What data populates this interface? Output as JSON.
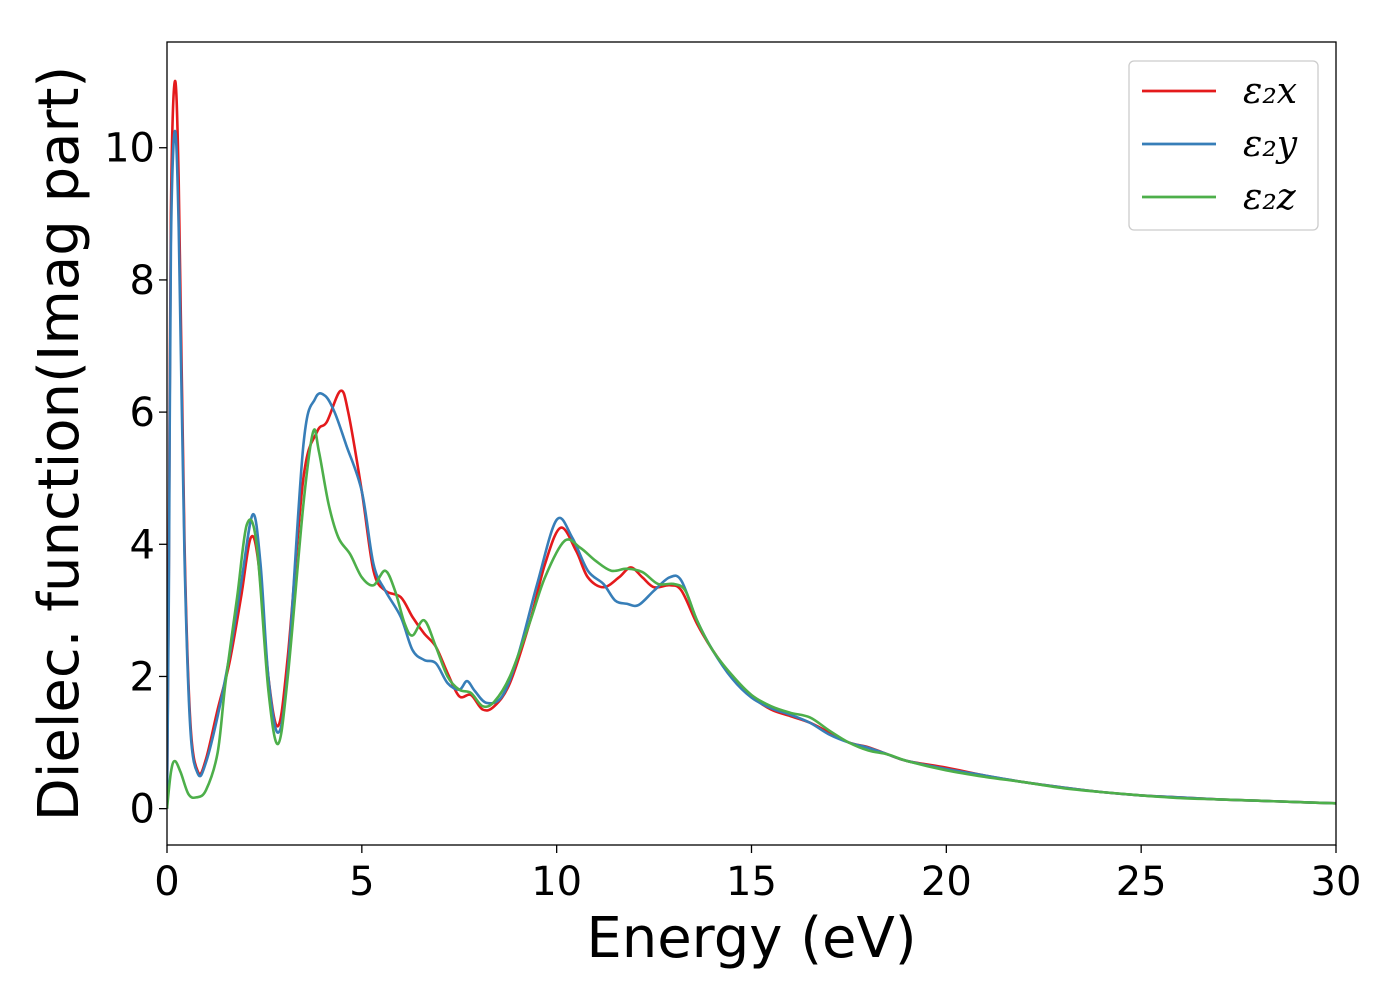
{
  "chart_data": {
    "type": "line",
    "xlabel": "Energy (eV)",
    "ylabel": "Dielec. function(Imag part)",
    "xlim": [
      0,
      30
    ],
    "ylim": [
      -0.55,
      11.6
    ],
    "xticks": [
      0,
      5,
      10,
      15,
      20,
      25,
      30
    ],
    "xtick_labels": [
      "0",
      "5",
      "10",
      "15",
      "20",
      "25",
      "30"
    ],
    "yticks": [
      0,
      2,
      4,
      6,
      8,
      10
    ],
    "ytick_labels": [
      "0",
      "2",
      "4",
      "6",
      "8",
      "10"
    ],
    "grid": false,
    "legend_position": "top-right",
    "series": [
      {
        "name": "ε₂x",
        "color": "#e41a1c",
        "points": [
          [
            0,
            0
          ],
          [
            0.05,
            4
          ],
          [
            0.1,
            9
          ],
          [
            0.2,
            11.0
          ],
          [
            0.3,
            9.5
          ],
          [
            0.45,
            4
          ],
          [
            0.6,
            1.3
          ],
          [
            0.8,
            0.55
          ],
          [
            1.0,
            0.75
          ],
          [
            1.3,
            1.5
          ],
          [
            1.6,
            2.2
          ],
          [
            1.9,
            3.2
          ],
          [
            2.15,
            4.1
          ],
          [
            2.35,
            3.7
          ],
          [
            2.6,
            2.0
          ],
          [
            2.85,
            1.25
          ],
          [
            3.1,
            2.3
          ],
          [
            3.5,
            5.0
          ],
          [
            3.85,
            5.7
          ],
          [
            4.1,
            5.85
          ],
          [
            4.45,
            6.32
          ],
          [
            4.65,
            6.0
          ],
          [
            5.0,
            4.8
          ],
          [
            5.3,
            3.6
          ],
          [
            5.6,
            3.3
          ],
          [
            6.0,
            3.2
          ],
          [
            6.3,
            2.9
          ],
          [
            6.6,
            2.65
          ],
          [
            6.9,
            2.45
          ],
          [
            7.2,
            2.05
          ],
          [
            7.5,
            1.7
          ],
          [
            7.8,
            1.72
          ],
          [
            8.1,
            1.5
          ],
          [
            8.4,
            1.55
          ],
          [
            8.8,
            1.9
          ],
          [
            9.3,
            2.8
          ],
          [
            9.7,
            3.7
          ],
          [
            10.1,
            4.25
          ],
          [
            10.5,
            3.9
          ],
          [
            10.8,
            3.5
          ],
          [
            11.2,
            3.35
          ],
          [
            11.6,
            3.5
          ],
          [
            11.9,
            3.65
          ],
          [
            12.2,
            3.5
          ],
          [
            12.5,
            3.35
          ],
          [
            12.9,
            3.38
          ],
          [
            13.2,
            3.3
          ],
          [
            13.6,
            2.8
          ],
          [
            14.0,
            2.4
          ],
          [
            14.5,
            2.0
          ],
          [
            15.0,
            1.7
          ],
          [
            15.5,
            1.5
          ],
          [
            16.0,
            1.4
          ],
          [
            16.5,
            1.3
          ],
          [
            17.0,
            1.15
          ],
          [
            17.5,
            1.0
          ],
          [
            18.0,
            0.93
          ],
          [
            18.5,
            0.82
          ],
          [
            19.0,
            0.72
          ],
          [
            20.0,
            0.62
          ],
          [
            21.0,
            0.5
          ],
          [
            22.0,
            0.4
          ],
          [
            23.0,
            0.32
          ],
          [
            24.0,
            0.25
          ],
          [
            25.0,
            0.2
          ],
          [
            26.0,
            0.17
          ],
          [
            27.0,
            0.14
          ],
          [
            28.0,
            0.12
          ],
          [
            29.0,
            0.1
          ],
          [
            30.0,
            0.08
          ]
        ]
      },
      {
        "name": "ε₂y",
        "color": "#377eb8",
        "points": [
          [
            0,
            0
          ],
          [
            0.05,
            3.5
          ],
          [
            0.1,
            8.5
          ],
          [
            0.2,
            10.25
          ],
          [
            0.3,
            8.8
          ],
          [
            0.45,
            3.8
          ],
          [
            0.6,
            1.2
          ],
          [
            0.8,
            0.52
          ],
          [
            1.0,
            0.7
          ],
          [
            1.3,
            1.4
          ],
          [
            1.6,
            2.3
          ],
          [
            1.9,
            3.4
          ],
          [
            2.2,
            4.45
          ],
          [
            2.4,
            3.7
          ],
          [
            2.6,
            2.0
          ],
          [
            2.85,
            1.15
          ],
          [
            3.1,
            2.1
          ],
          [
            3.5,
            5.5
          ],
          [
            3.8,
            6.2
          ],
          [
            4.05,
            6.25
          ],
          [
            4.3,
            6.0
          ],
          [
            4.6,
            5.5
          ],
          [
            5.0,
            4.8
          ],
          [
            5.3,
            3.7
          ],
          [
            5.6,
            3.3
          ],
          [
            6.0,
            2.9
          ],
          [
            6.3,
            2.4
          ],
          [
            6.6,
            2.25
          ],
          [
            6.9,
            2.2
          ],
          [
            7.2,
            1.9
          ],
          [
            7.5,
            1.8
          ],
          [
            7.7,
            1.93
          ],
          [
            7.9,
            1.78
          ],
          [
            8.2,
            1.6
          ],
          [
            8.6,
            1.7
          ],
          [
            9.0,
            2.3
          ],
          [
            9.5,
            3.4
          ],
          [
            10.0,
            4.37
          ],
          [
            10.4,
            4.1
          ],
          [
            10.8,
            3.6
          ],
          [
            11.2,
            3.4
          ],
          [
            11.5,
            3.15
          ],
          [
            11.8,
            3.1
          ],
          [
            12.1,
            3.08
          ],
          [
            12.5,
            3.3
          ],
          [
            12.9,
            3.5
          ],
          [
            13.2,
            3.45
          ],
          [
            13.6,
            2.85
          ],
          [
            14.0,
            2.4
          ],
          [
            14.5,
            1.97
          ],
          [
            15.0,
            1.68
          ],
          [
            15.5,
            1.52
          ],
          [
            16.0,
            1.42
          ],
          [
            16.5,
            1.3
          ],
          [
            17.0,
            1.12
          ],
          [
            17.5,
            1.0
          ],
          [
            18.0,
            0.92
          ],
          [
            18.5,
            0.82
          ],
          [
            19.0,
            0.72
          ],
          [
            20.0,
            0.6
          ],
          [
            21.0,
            0.5
          ],
          [
            22.0,
            0.4
          ],
          [
            23.0,
            0.32
          ],
          [
            24.0,
            0.25
          ],
          [
            25.0,
            0.2
          ],
          [
            26.0,
            0.17
          ],
          [
            27.0,
            0.14
          ],
          [
            28.0,
            0.12
          ],
          [
            29.0,
            0.1
          ],
          [
            30.0,
            0.08
          ]
        ]
      },
      {
        "name": "ε₂z",
        "color": "#4daf4a",
        "points": [
          [
            0,
            0
          ],
          [
            0.1,
            0.55
          ],
          [
            0.2,
            0.72
          ],
          [
            0.35,
            0.55
          ],
          [
            0.55,
            0.22
          ],
          [
            0.75,
            0.17
          ],
          [
            1.0,
            0.28
          ],
          [
            1.3,
            0.85
          ],
          [
            1.5,
            1.9
          ],
          [
            1.8,
            3.2
          ],
          [
            2.05,
            4.3
          ],
          [
            2.3,
            4.0
          ],
          [
            2.6,
            1.8
          ],
          [
            2.85,
            0.98
          ],
          [
            3.1,
            2.0
          ],
          [
            3.5,
            4.6
          ],
          [
            3.75,
            5.7
          ],
          [
            3.9,
            5.4
          ],
          [
            4.15,
            4.6
          ],
          [
            4.4,
            4.1
          ],
          [
            4.7,
            3.85
          ],
          [
            5.0,
            3.5
          ],
          [
            5.3,
            3.38
          ],
          [
            5.6,
            3.6
          ],
          [
            5.85,
            3.3
          ],
          [
            6.1,
            2.8
          ],
          [
            6.3,
            2.62
          ],
          [
            6.6,
            2.85
          ],
          [
            6.9,
            2.45
          ],
          [
            7.2,
            2.0
          ],
          [
            7.5,
            1.8
          ],
          [
            7.8,
            1.75
          ],
          [
            8.1,
            1.55
          ],
          [
            8.4,
            1.62
          ],
          [
            8.8,
            2.0
          ],
          [
            9.3,
            2.8
          ],
          [
            9.7,
            3.5
          ],
          [
            10.2,
            4.05
          ],
          [
            10.6,
            3.95
          ],
          [
            11.0,
            3.75
          ],
          [
            11.4,
            3.6
          ],
          [
            11.8,
            3.63
          ],
          [
            12.2,
            3.58
          ],
          [
            12.6,
            3.4
          ],
          [
            13.0,
            3.4
          ],
          [
            13.3,
            3.3
          ],
          [
            13.6,
            2.85
          ],
          [
            14.0,
            2.4
          ],
          [
            14.5,
            2.02
          ],
          [
            15.0,
            1.72
          ],
          [
            15.5,
            1.55
          ],
          [
            16.0,
            1.45
          ],
          [
            16.5,
            1.38
          ],
          [
            17.0,
            1.18
          ],
          [
            17.5,
            1.0
          ],
          [
            18.0,
            0.88
          ],
          [
            18.5,
            0.82
          ],
          [
            19.0,
            0.72
          ],
          [
            20.0,
            0.58
          ],
          [
            21.0,
            0.48
          ],
          [
            22.0,
            0.4
          ],
          [
            23.0,
            0.31
          ],
          [
            24.0,
            0.25
          ],
          [
            25.0,
            0.2
          ],
          [
            26.0,
            0.16
          ],
          [
            27.0,
            0.14
          ],
          [
            28.0,
            0.12
          ],
          [
            29.0,
            0.1
          ],
          [
            30.0,
            0.08
          ]
        ]
      }
    ]
  }
}
